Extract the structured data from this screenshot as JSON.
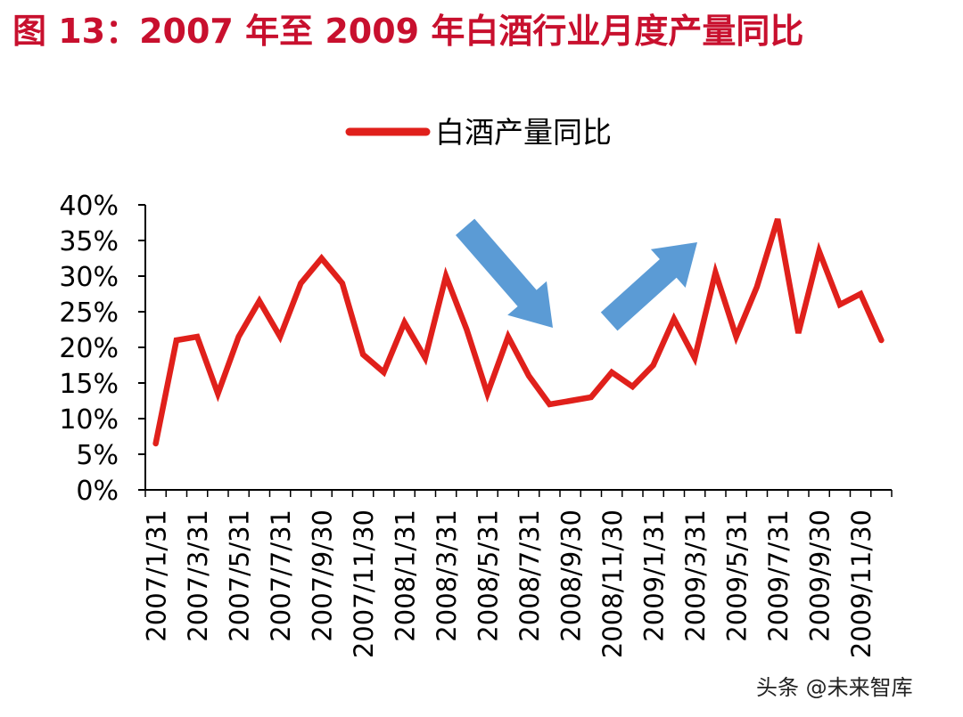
{
  "figure": {
    "title": "图 13：2007 年至 2009 年白酒行业月度产量同比"
  },
  "watermark": "头条 @未来智库",
  "colors": {
    "title": "#c8102e",
    "line": "#e0201b",
    "arrow": "#5b9bd5",
    "axis": "#000000"
  },
  "chart_data": {
    "type": "line",
    "legend": "top-center",
    "grid": false,
    "ylim": [
      0,
      40
    ],
    "yticks": [
      "0%",
      "5%",
      "10%",
      "15%",
      "20%",
      "25%",
      "30%",
      "35%",
      "40%"
    ],
    "xtick_labels": [
      "2007/1/31",
      "2007/3/31",
      "2007/5/31",
      "2007/7/31",
      "2007/9/30",
      "2007/11/30",
      "2008/1/31",
      "2008/3/31",
      "2008/5/31",
      "2008/7/31",
      "2008/9/30",
      "2008/11/30",
      "2009/1/31",
      "2009/3/31",
      "2009/5/31",
      "2009/7/31",
      "2009/9/30",
      "2009/11/30"
    ],
    "series": [
      {
        "name": "白酒产量同比",
        "values": [
          6.5,
          21,
          21.5,
          13.5,
          21.5,
          26.5,
          21.5,
          29,
          32.5,
          29,
          19,
          16.5,
          23.5,
          18.5,
          30,
          22.5,
          13.5,
          21.5,
          16,
          12,
          12.5,
          13,
          16.5,
          14.5,
          17.5,
          24,
          18.5,
          30.5,
          21.5,
          28.5,
          38,
          22,
          33.5,
          26,
          27.5,
          21
        ]
      }
    ],
    "annotations": [
      {
        "type": "arrow",
        "direction": "down-right"
      },
      {
        "type": "arrow",
        "direction": "up-right"
      }
    ]
  }
}
